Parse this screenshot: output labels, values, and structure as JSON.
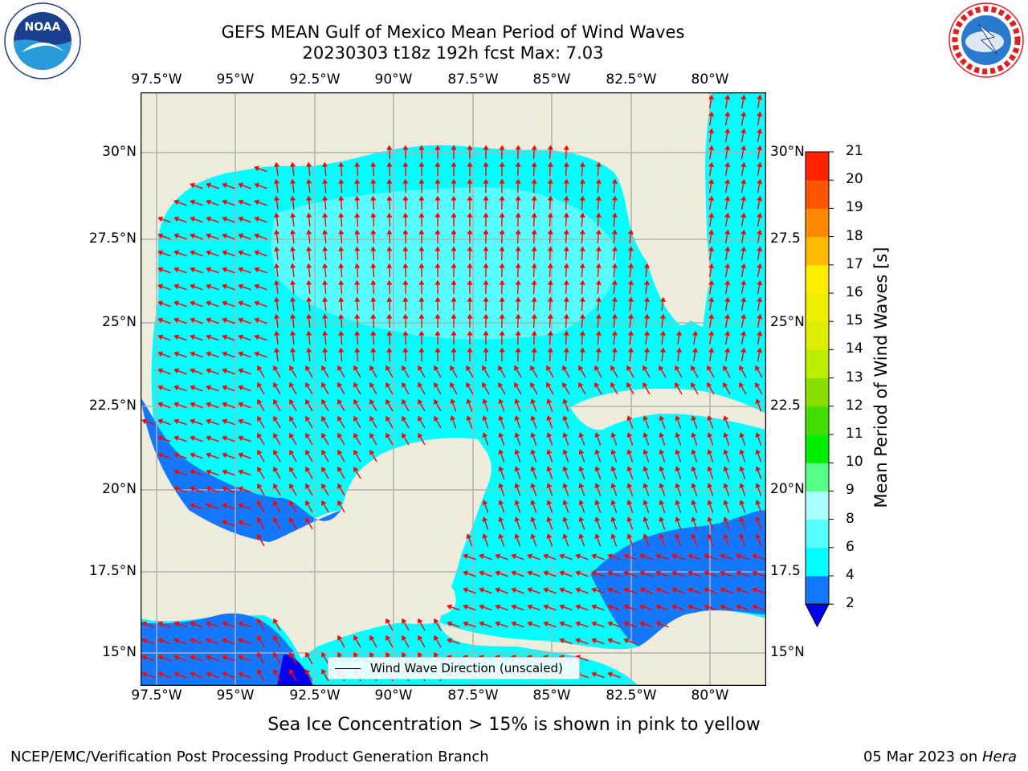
{
  "title": {
    "line1": "GEFS MEAN Gulf of Mexico Mean Period of Wind Waves",
    "line2": "20230303 t18z 192h fcst   Max: 7.03"
  },
  "logos": {
    "left": "noaa-logo",
    "right": "national-weather-service-logo"
  },
  "map": {
    "lon_labels": [
      "97.5°W",
      "95°W",
      "92.5°W",
      "90°W",
      "87.5°W",
      "85°W",
      "82.5°W",
      "80°W"
    ],
    "lat_labels_left": [
      "30°N",
      "27.5°N",
      "25°N",
      "22.5°N",
      "20°N",
      "17.5°N",
      "15°N"
    ],
    "lat_labels_right": [
      "30°N",
      "27.5",
      "25°N",
      "22.5",
      "20°N",
      "17.5",
      "15°N"
    ],
    "legend_label": "Wind Wave Direction (unscaled)",
    "colors": {
      "land": "#efecdc",
      "grid": "#b0b0b0",
      "arrow": "#ff0000",
      "period_2_4": "#1478ff",
      "period_4_6": "#00ffff",
      "period_6_8": "#55ffff",
      "below_2": "#0000ee"
    }
  },
  "colorbar": {
    "title": "Mean Period of Wind Waves [s]",
    "ticks": [
      "2",
      "4",
      "6",
      "8",
      "9",
      "10",
      "11",
      "12",
      "13",
      "14",
      "15",
      "16",
      "17",
      "18",
      "19",
      "20",
      "21"
    ],
    "colors": [
      "#1478ff",
      "#00ffff",
      "#55ffff",
      "#aaffff",
      "#55ff88",
      "#00ee00",
      "#44dd00",
      "#88dd00",
      "#bbee00",
      "#ddee00",
      "#eeee00",
      "#ffee00",
      "#ffbb00",
      "#ff8800",
      "#ff5500",
      "#ff2200"
    ]
  },
  "footer_note": "Sea Ice Concentration > 15% is shown in pink to yellow",
  "credit": "NCEP/EMC/Verification Post Processing Product Generation Branch",
  "date": "05 Mar 2023 on Hera"
}
